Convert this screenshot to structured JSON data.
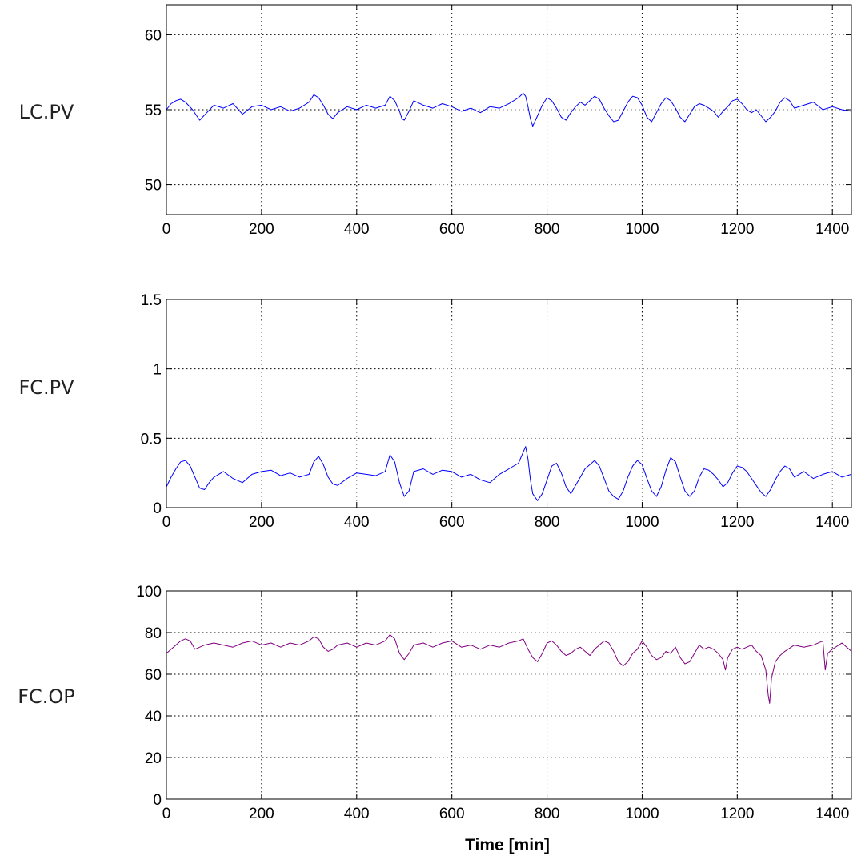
{
  "chart_data": [
    {
      "type": "line",
      "row_label": "LC.PV",
      "title": "",
      "xlabel": "",
      "ylabel": "",
      "xlim": [
        0,
        1440
      ],
      "ylim": [
        48,
        62
      ],
      "xticks": [
        0,
        200,
        400,
        600,
        800,
        1000,
        1200,
        1400
      ],
      "yticks": [
        50,
        55,
        60
      ],
      "grid": true,
      "series": [
        {
          "color": "#0000ff",
          "x": [
            0,
            10,
            20,
            30,
            40,
            55,
            70,
            85,
            100,
            120,
            140,
            160,
            180,
            200,
            220,
            240,
            260,
            280,
            300,
            310,
            320,
            330,
            340,
            350,
            360,
            380,
            400,
            420,
            440,
            460,
            470,
            480,
            490,
            495,
            500,
            510,
            520,
            540,
            560,
            580,
            600,
            620,
            640,
            660,
            680,
            700,
            720,
            740,
            750,
            755,
            760,
            765,
            770,
            780,
            790,
            800,
            810,
            820,
            830,
            840,
            850,
            860,
            870,
            880,
            890,
            900,
            910,
            920,
            930,
            940,
            950,
            960,
            970,
            980,
            990,
            1000,
            1010,
            1020,
            1030,
            1040,
            1050,
            1060,
            1070,
            1080,
            1090,
            1100,
            1110,
            1120,
            1130,
            1140,
            1150,
            1160,
            1170,
            1180,
            1190,
            1200,
            1210,
            1220,
            1230,
            1240,
            1250,
            1260,
            1270,
            1280,
            1290,
            1300,
            1310,
            1320,
            1340,
            1360,
            1380,
            1400,
            1420,
            1440
          ],
          "y": [
            55.0,
            55.4,
            55.6,
            55.7,
            55.5,
            55.0,
            54.3,
            54.8,
            55.3,
            55.1,
            55.4,
            54.7,
            55.2,
            55.3,
            55.0,
            55.2,
            54.9,
            55.1,
            55.5,
            56.0,
            55.8,
            55.3,
            54.7,
            54.4,
            54.8,
            55.2,
            55.0,
            55.3,
            55.1,
            55.3,
            55.9,
            55.6,
            54.9,
            54.4,
            54.3,
            54.9,
            55.6,
            55.3,
            55.1,
            55.4,
            55.2,
            54.9,
            55.1,
            54.8,
            55.2,
            55.1,
            55.4,
            55.8,
            56.1,
            55.9,
            55.2,
            54.4,
            53.9,
            54.6,
            55.3,
            55.8,
            55.6,
            55.1,
            54.5,
            54.3,
            54.8,
            55.2,
            55.5,
            55.3,
            55.6,
            55.9,
            55.7,
            55.1,
            54.6,
            54.2,
            54.3,
            54.9,
            55.5,
            55.9,
            55.8,
            55.3,
            54.5,
            54.2,
            54.8,
            55.4,
            55.8,
            55.6,
            55.1,
            54.5,
            54.2,
            54.7,
            55.2,
            55.4,
            55.3,
            55.1,
            54.9,
            54.5,
            54.9,
            55.2,
            55.6,
            55.7,
            55.4,
            55.0,
            54.8,
            55.0,
            54.6,
            54.2,
            54.5,
            54.9,
            55.5,
            55.8,
            55.6,
            55.1,
            55.3,
            55.5,
            55.0,
            55.2,
            55.0,
            54.9
          ]
        }
      ]
    },
    {
      "type": "line",
      "row_label": "FC.PV",
      "title": "",
      "xlabel": "",
      "ylabel": "",
      "xlim": [
        0,
        1440
      ],
      "ylim": [
        0,
        1.5
      ],
      "xticks": [
        0,
        200,
        400,
        600,
        800,
        1000,
        1200,
        1400
      ],
      "yticks": [
        0,
        0.5,
        1,
        1.5
      ],
      "grid": true,
      "series": [
        {
          "color": "#0000ff",
          "x": [
            0,
            10,
            20,
            30,
            40,
            50,
            60,
            70,
            80,
            90,
            100,
            120,
            140,
            160,
            180,
            200,
            220,
            240,
            260,
            280,
            300,
            310,
            320,
            330,
            340,
            350,
            360,
            380,
            400,
            420,
            440,
            460,
            470,
            480,
            490,
            500,
            510,
            520,
            540,
            560,
            580,
            600,
            620,
            640,
            660,
            680,
            700,
            720,
            740,
            750,
            755,
            760,
            765,
            770,
            780,
            790,
            800,
            810,
            820,
            830,
            840,
            850,
            860,
            870,
            880,
            890,
            900,
            910,
            920,
            930,
            940,
            950,
            960,
            970,
            980,
            990,
            1000,
            1010,
            1020,
            1030,
            1040,
            1050,
            1060,
            1070,
            1080,
            1090,
            1100,
            1110,
            1120,
            1130,
            1140,
            1150,
            1160,
            1170,
            1180,
            1190,
            1200,
            1210,
            1220,
            1230,
            1240,
            1250,
            1260,
            1270,
            1280,
            1290,
            1300,
            1310,
            1320,
            1340,
            1360,
            1380,
            1400,
            1420,
            1440
          ],
          "y": [
            0.15,
            0.22,
            0.28,
            0.33,
            0.34,
            0.3,
            0.22,
            0.14,
            0.13,
            0.18,
            0.22,
            0.26,
            0.21,
            0.18,
            0.24,
            0.26,
            0.27,
            0.23,
            0.25,
            0.22,
            0.24,
            0.33,
            0.37,
            0.31,
            0.22,
            0.17,
            0.16,
            0.21,
            0.25,
            0.24,
            0.23,
            0.26,
            0.38,
            0.33,
            0.18,
            0.08,
            0.12,
            0.26,
            0.28,
            0.24,
            0.27,
            0.26,
            0.22,
            0.24,
            0.2,
            0.18,
            0.24,
            0.28,
            0.32,
            0.4,
            0.44,
            0.35,
            0.2,
            0.1,
            0.05,
            0.1,
            0.2,
            0.3,
            0.32,
            0.25,
            0.15,
            0.1,
            0.16,
            0.22,
            0.28,
            0.31,
            0.34,
            0.3,
            0.21,
            0.12,
            0.08,
            0.06,
            0.12,
            0.22,
            0.3,
            0.34,
            0.31,
            0.21,
            0.12,
            0.08,
            0.15,
            0.27,
            0.36,
            0.33,
            0.22,
            0.12,
            0.08,
            0.12,
            0.22,
            0.28,
            0.27,
            0.24,
            0.2,
            0.15,
            0.18,
            0.25,
            0.3,
            0.29,
            0.26,
            0.21,
            0.16,
            0.11,
            0.08,
            0.13,
            0.2,
            0.26,
            0.3,
            0.28,
            0.22,
            0.26,
            0.21,
            0.24,
            0.26,
            0.22,
            0.24
          ]
        }
      ]
    },
    {
      "type": "line",
      "row_label": "FC.OP",
      "title": "",
      "xlabel": "Time [min]",
      "ylabel": "",
      "xlim": [
        0,
        1440
      ],
      "ylim": [
        0,
        100
      ],
      "xticks": [
        0,
        200,
        400,
        600,
        800,
        1000,
        1200,
        1400
      ],
      "yticks": [
        0,
        20,
        40,
        60,
        80,
        100
      ],
      "grid": true,
      "series": [
        {
          "color": "#800080",
          "x": [
            0,
            10,
            20,
            30,
            40,
            50,
            60,
            80,
            100,
            120,
            140,
            160,
            180,
            200,
            220,
            240,
            260,
            280,
            300,
            310,
            320,
            330,
            340,
            350,
            360,
            380,
            400,
            420,
            440,
            460,
            470,
            480,
            490,
            500,
            510,
            520,
            540,
            560,
            580,
            600,
            620,
            640,
            660,
            680,
            700,
            720,
            740,
            750,
            760,
            770,
            780,
            790,
            800,
            810,
            820,
            830,
            840,
            850,
            860,
            870,
            880,
            890,
            900,
            910,
            920,
            930,
            940,
            950,
            960,
            970,
            980,
            990,
            1000,
            1010,
            1020,
            1030,
            1040,
            1050,
            1060,
            1070,
            1080,
            1090,
            1100,
            1110,
            1120,
            1130,
            1140,
            1150,
            1160,
            1170,
            1175,
            1180,
            1190,
            1200,
            1210,
            1220,
            1230,
            1240,
            1250,
            1260,
            1265,
            1268,
            1272,
            1280,
            1290,
            1300,
            1320,
            1340,
            1360,
            1380,
            1385,
            1390,
            1400,
            1420,
            1430,
            1440
          ],
          "y": [
            70,
            72,
            74,
            76,
            77,
            76,
            72,
            74,
            75,
            74,
            73,
            75,
            76,
            74,
            75,
            73,
            75,
            74,
            76,
            78,
            77,
            73,
            71,
            72,
            74,
            75,
            73,
            75,
            74,
            76,
            79,
            77,
            70,
            67,
            70,
            74,
            75,
            73,
            75,
            76,
            73,
            74,
            72,
            74,
            73,
            75,
            76,
            77,
            72,
            68,
            66,
            70,
            75,
            76,
            74,
            71,
            69,
            70,
            72,
            73,
            71,
            69,
            72,
            74,
            76,
            75,
            71,
            66,
            64,
            66,
            70,
            72,
            76,
            73,
            69,
            67,
            68,
            71,
            70,
            73,
            68,
            65,
            66,
            70,
            74,
            72,
            73,
            72,
            70,
            67,
            62,
            68,
            72,
            73,
            72,
            73,
            74,
            71,
            69,
            62,
            50,
            46,
            58,
            66,
            69,
            71,
            74,
            73,
            74,
            76,
            62,
            70,
            72,
            75,
            73,
            71
          ]
        }
      ]
    }
  ]
}
